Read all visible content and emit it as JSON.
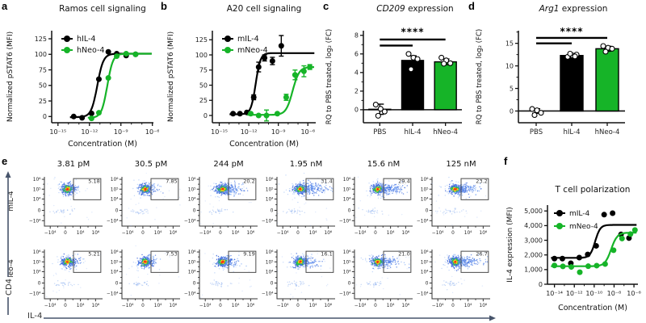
{
  "letters": {
    "a": "a",
    "b": "b",
    "c": "c",
    "d": "d",
    "e": "e",
    "f": "f"
  },
  "colors": {
    "black": "#000000",
    "green": "#16b428",
    "axis": "#111111",
    "arrow": "#47546b",
    "gate": "#4a4a4a"
  },
  "chart_data": [
    {
      "id": "a",
      "type": "scatter-dose",
      "title": "Ramos cell signaling",
      "xlabel": "Concentration (M)",
      "ylabel": "Normalized pSTAT6 (MFI)",
      "xlim": [
        -15.6,
        -5.9
      ],
      "ylim": [
        -10,
        138
      ],
      "xtick_pos": [
        -15,
        -12,
        -9,
        -6
      ],
      "xtick_labels": [
        "10⁻¹⁵",
        "10⁻¹²",
        "10⁻⁹",
        "10⁻⁶"
      ],
      "yticks": [
        0,
        25,
        50,
        75,
        100,
        125
      ],
      "series": [
        {
          "name": "hIL-4",
          "color": "#000000",
          "x": [
            -13.5,
            -12.7,
            -11.8,
            -11.1,
            -10.2,
            -9.4,
            -8.5,
            -7.6
          ],
          "y": [
            0,
            -2,
            5,
            60,
            104,
            101,
            98,
            100
          ],
          "fit": {
            "bottom": -1,
            "top": 101,
            "ec50": -11.25,
            "hill": 1.5
          }
        },
        {
          "name": "hNeo-4",
          "color": "#16b428",
          "x": [
            -11.8,
            -11.1,
            -10.2,
            -9.4,
            -8.5,
            -7.6
          ],
          "y": [
            -3,
            6,
            62,
            97,
            101,
            100
          ],
          "fit": {
            "bottom": -2,
            "top": 101,
            "ec50": -10.3,
            "hill": 1.6
          }
        }
      ]
    },
    {
      "id": "b",
      "type": "scatter-dose",
      "title": "A20 cell signaling",
      "xlabel": "Concentration (M)",
      "ylabel": "Normalized pSTAT6 (MFI)",
      "xlim": [
        -15.7,
        -5.2
      ],
      "ylim": [
        -12,
        140
      ],
      "xtick_pos": [
        -15,
        -12,
        -9,
        -6
      ],
      "xtick_labels": [
        "10⁻¹⁵",
        "10⁻¹²",
        "10⁻⁹",
        "10⁻⁶"
      ],
      "yticks": [
        0,
        25,
        50,
        75,
        100,
        125
      ],
      "series": [
        {
          "name": "mIL-4",
          "color": "#000000",
          "x": [
            -13.6,
            -12.9,
            -12.2,
            -11.5,
            -11.0,
            -10.4,
            -9.6,
            -8.7
          ],
          "y": [
            3,
            3,
            5,
            30,
            80,
            95,
            90,
            115
          ],
          "err": [
            0,
            0,
            0,
            4,
            8,
            5,
            6,
            17
          ],
          "fit": {
            "bottom": 2,
            "top": 103,
            "ec50": -11.3,
            "hill": 1.8
          }
        },
        {
          "name": "mNeo-4",
          "color": "#16b428",
          "x": [
            -11.8,
            -11.0,
            -10.2,
            -9.1,
            -8.2,
            -7.3,
            -6.4,
            -5.8
          ],
          "y": [
            3,
            0,
            0,
            3,
            30,
            67,
            73,
            80
          ],
          "err": [
            0,
            0,
            9,
            0,
            5,
            8,
            9,
            4
          ],
          "fit": {
            "bottom": 1,
            "top": 80,
            "ec50": -7.55,
            "hill": 1.3
          }
        }
      ]
    },
    {
      "id": "c",
      "type": "bar",
      "title_italic": "CD209",
      "title_rest": " expression",
      "ylabel": "RQ to PBS treated, log₂ (FC)",
      "categories": [
        "PBS",
        "hIL-4",
        "hNeo-4"
      ],
      "values": [
        0.05,
        5.3,
        5.15
      ],
      "errors": [
        0.55,
        0.5,
        0.3
      ],
      "points": [
        [
          0.55,
          0.1,
          -0.2,
          -0.65
        ],
        [
          6.0,
          5.6,
          5.45,
          4.35
        ],
        [
          5.6,
          5.3,
          5.0,
          4.95
        ]
      ],
      "bar_fills": [
        "#ffffff",
        "#000000",
        "#16b428"
      ],
      "yticks": [
        0,
        2,
        4,
        6,
        8
      ],
      "ylim": [
        -1.4,
        8.5
      ],
      "sig_label": "****",
      "sig_lines": [
        [
          0,
          2,
          7.55
        ],
        [
          0,
          1,
          6.9
        ]
      ],
      "sig_y": 8.3
    },
    {
      "id": "d",
      "type": "bar",
      "title_italic": "Arg1",
      "title_rest": " expression",
      "ylabel": "RQ to PBS treated, log₂ (FC)",
      "categories": [
        "PBS",
        "hIL-4",
        "hNeo-4"
      ],
      "values": [
        0.0,
        12.3,
        13.8
      ],
      "errors": [
        0.5,
        0.35,
        0.55
      ],
      "points": [
        [
          0.45,
          0.15,
          -0.4,
          -0.9
        ],
        [
          12.0,
          12.3,
          12.5,
          12.7,
          12.1
        ],
        [
          14.4,
          14.0,
          13.8,
          13.15
        ]
      ],
      "bar_fills": [
        "#ffffff",
        "#000000",
        "#16b428"
      ],
      "yticks": [
        0,
        5,
        10,
        15
      ],
      "ylim": [
        -2.6,
        17.8
      ],
      "sig_label": "****",
      "sig_lines": [
        [
          0,
          2,
          16.2
        ],
        [
          0,
          1,
          15.0
        ]
      ],
      "sig_y": 17.4
    },
    {
      "id": "e",
      "type": "flow-grid",
      "concentrations": [
        "3.81 pM",
        "30.5 pM",
        "244 pM",
        "1.95 nM",
        "15.6 nM",
        "125 nM"
      ],
      "row_labels": [
        "mIL-4",
        "mNeo-4"
      ],
      "percentages": [
        [
          "5.18",
          "7.85",
          "20.2",
          "31.4",
          "29.4",
          "23.2"
        ],
        [
          "5.21",
          "7.53",
          "9.19",
          "16.1",
          "21.0",
          "26.7"
        ]
      ],
      "x_axis": "IL-4",
      "y_axis": "CD4",
      "xtick_labels": [
        "−10⁴",
        "0",
        "10⁴",
        "10⁶"
      ],
      "ytick_labels": [
        "10⁶",
        "10⁵",
        "10⁴",
        "0",
        "−10⁴"
      ]
    },
    {
      "id": "f",
      "type": "scatter-dose",
      "title": "T cell polarization",
      "xlabel": "Concentration (M)",
      "ylabel": "IL-4 expression (MFI)",
      "xlim": [
        -14.7,
        -5.6
      ],
      "ylim": [
        0,
        5400
      ],
      "xtick_pos": [
        -14,
        -12,
        -10,
        -8,
        -6
      ],
      "xtick_labels": [
        "10⁻¹⁴",
        "10⁻¹²",
        "10⁻¹⁰",
        "10⁻⁸",
        "10⁻⁶"
      ],
      "yticks": [
        0,
        1000,
        2000,
        3000,
        4000,
        5000
      ],
      "ytick_labels": [
        "0",
        "1,000",
        "2,000",
        "3,000",
        "4,000",
        "5,000"
      ],
      "series": [
        {
          "name": "mIL-4",
          "color": "#000000",
          "x": [
            -14.0,
            -13.2,
            -12.35,
            -11.5,
            -10.65,
            -9.8,
            -9.0,
            -8.15,
            -7.3,
            -6.5
          ],
          "y": [
            1750,
            1750,
            1430,
            1820,
            2030,
            2620,
            4750,
            4850,
            3400,
            3150
          ],
          "fit": {
            "bottom": 1800,
            "top": 4050,
            "ec50": -9.9,
            "hill": 1.7
          }
        },
        {
          "name": "mNeo-4",
          "color": "#16b428",
          "x": [
            -14.0,
            -13.15,
            -12.3,
            -11.45,
            -10.6,
            -9.75,
            -8.9,
            -8.05,
            -7.2,
            -6.35,
            -5.9
          ],
          "y": [
            1280,
            1220,
            1180,
            820,
            1230,
            1270,
            1380,
            2320,
            3120,
            3420,
            3700
          ],
          "fit": {
            "bottom": 1230,
            "top": 3520,
            "ec50": -8.3,
            "hill": 1.4
          }
        }
      ]
    }
  ]
}
